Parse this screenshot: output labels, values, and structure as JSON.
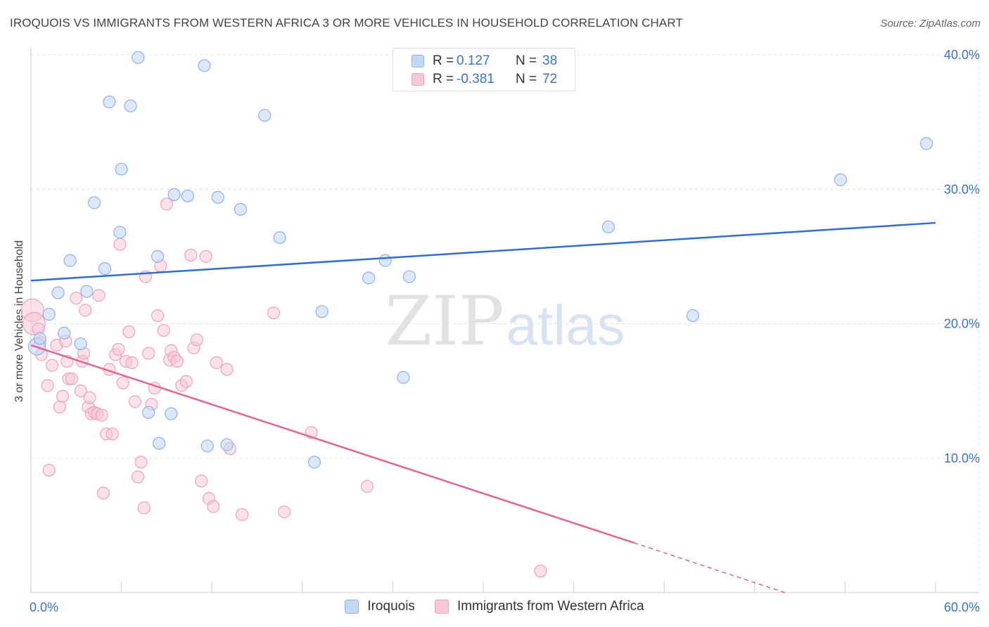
{
  "header": {
    "title": "IROQUOIS VS IMMIGRANTS FROM WESTERN AFRICA 3 OR MORE VEHICLES IN HOUSEHOLD CORRELATION CHART",
    "source": "Source: ZipAtlas.com"
  },
  "watermark": {
    "zip": "ZIP",
    "atlas": "atlas"
  },
  "legend": {
    "rows": [
      {
        "r_label": "R =",
        "r_value": "0.127",
        "n_label": "N =",
        "n_value": "38"
      },
      {
        "r_label": "R =",
        "r_value": "-0.381",
        "n_label": "N =",
        "n_value": "72"
      }
    ]
  },
  "colors": {
    "iroquois_fill": "#c5d8f5",
    "iroquois_stroke": "#8fb3e8",
    "iroquois_line": "#2f6fcc",
    "immig_fill": "#f8c8d6",
    "immig_stroke": "#f0a3ba",
    "immig_line": "#e06592",
    "tick_text": "#3b73c2",
    "grid": "#e3e3e3"
  },
  "chart_data": {
    "type": "scatter",
    "title": "IROQUOIS VS IMMIGRANTS FROM WESTERN AFRICA 3 OR MORE VEHICLES IN HOUSEHOLD CORRELATION CHART",
    "xlabel": "",
    "ylabel": "3 or more Vehicles in Household",
    "xlim": [
      0,
      60
    ],
    "ylim": [
      0,
      40
    ],
    "x_tick_labels": [
      "0.0%",
      "60.0%"
    ],
    "y_ticks": [
      10,
      20,
      30,
      40
    ],
    "y_tick_labels": [
      "10.0%",
      "20.0%",
      "30.0%",
      "40.0%"
    ],
    "legend_position": "top-center",
    "series": [
      {
        "name": "Iroquois",
        "r": 0.127,
        "n": 38,
        "trend": {
          "x": [
            0,
            60
          ],
          "y": [
            23.2,
            27.5
          ]
        },
        "points": [
          [
            0.4,
            18.3
          ],
          [
            0.6,
            18.9
          ],
          [
            1.2,
            20.7
          ],
          [
            1.8,
            22.3
          ],
          [
            2.2,
            19.3
          ],
          [
            2.6,
            24.7
          ],
          [
            3.3,
            18.5
          ],
          [
            3.7,
            22.4
          ],
          [
            4.2,
            29.0
          ],
          [
            4.9,
            24.1
          ],
          [
            5.2,
            36.5
          ],
          [
            5.9,
            26.8
          ],
          [
            6.0,
            31.5
          ],
          [
            6.6,
            36.2
          ],
          [
            7.1,
            39.8
          ],
          [
            7.8,
            13.4
          ],
          [
            8.4,
            25.0
          ],
          [
            8.5,
            11.1
          ],
          [
            9.3,
            13.3
          ],
          [
            9.5,
            29.6
          ],
          [
            10.4,
            29.5
          ],
          [
            11.5,
            39.2
          ],
          [
            11.7,
            10.9
          ],
          [
            12.4,
            29.4
          ],
          [
            13.0,
            11.0
          ],
          [
            13.9,
            28.5
          ],
          [
            15.5,
            35.5
          ],
          [
            16.5,
            26.4
          ],
          [
            18.8,
            9.7
          ],
          [
            19.3,
            20.9
          ],
          [
            22.4,
            23.4
          ],
          [
            23.5,
            24.7
          ],
          [
            24.7,
            16.0
          ],
          [
            25.1,
            23.5
          ],
          [
            38.3,
            27.2
          ],
          [
            43.9,
            20.6
          ],
          [
            53.7,
            30.7
          ],
          [
            59.4,
            33.4
          ]
        ]
      },
      {
        "name": "Immigrants from Western Africa",
        "r": -0.381,
        "n": 72,
        "trend": {
          "x": [
            0,
            40
          ],
          "y": [
            18.4,
            3.7
          ]
        },
        "trend_dashed": {
          "x": [
            40,
            50
          ],
          "y": [
            3.7,
            0.0
          ]
        },
        "points": [
          [
            0.1,
            21.0
          ],
          [
            0.2,
            20.0
          ],
          [
            0.5,
            19.6
          ],
          [
            0.6,
            18.6
          ],
          [
            0.7,
            17.7
          ],
          [
            1.1,
            15.4
          ],
          [
            1.2,
            9.1
          ],
          [
            1.4,
            16.9
          ],
          [
            1.7,
            18.4
          ],
          [
            1.9,
            13.8
          ],
          [
            2.1,
            14.6
          ],
          [
            2.3,
            18.7
          ],
          [
            2.4,
            17.2
          ],
          [
            2.5,
            15.9
          ],
          [
            2.7,
            15.9
          ],
          [
            3.0,
            21.9
          ],
          [
            3.3,
            15.0
          ],
          [
            3.4,
            17.2
          ],
          [
            3.5,
            17.8
          ],
          [
            3.6,
            21.0
          ],
          [
            3.8,
            13.8
          ],
          [
            3.9,
            14.5
          ],
          [
            4.0,
            13.3
          ],
          [
            4.2,
            13.4
          ],
          [
            4.4,
            13.3
          ],
          [
            4.5,
            22.1
          ],
          [
            4.7,
            13.2
          ],
          [
            4.8,
            7.4
          ],
          [
            5.0,
            11.8
          ],
          [
            5.2,
            16.6
          ],
          [
            5.4,
            11.8
          ],
          [
            5.6,
            17.7
          ],
          [
            5.8,
            18.1
          ],
          [
            5.9,
            25.9
          ],
          [
            6.1,
            15.6
          ],
          [
            6.3,
            17.2
          ],
          [
            6.5,
            19.4
          ],
          [
            6.7,
            17.1
          ],
          [
            6.9,
            14.2
          ],
          [
            7.1,
            8.6
          ],
          [
            7.3,
            9.7
          ],
          [
            7.5,
            6.3
          ],
          [
            7.6,
            23.5
          ],
          [
            7.8,
            17.8
          ],
          [
            8.0,
            14.0
          ],
          [
            8.2,
            15.2
          ],
          [
            8.4,
            20.6
          ],
          [
            8.6,
            24.3
          ],
          [
            8.8,
            19.5
          ],
          [
            9.0,
            28.9
          ],
          [
            9.2,
            17.3
          ],
          [
            9.3,
            18.0
          ],
          [
            9.5,
            17.5
          ],
          [
            9.7,
            17.2
          ],
          [
            10.0,
            15.4
          ],
          [
            10.3,
            15.7
          ],
          [
            10.6,
            25.1
          ],
          [
            10.8,
            18.2
          ],
          [
            11.0,
            18.8
          ],
          [
            11.3,
            8.3
          ],
          [
            11.6,
            25.0
          ],
          [
            11.8,
            7.0
          ],
          [
            12.1,
            6.4
          ],
          [
            12.3,
            17.1
          ],
          [
            13.0,
            16.6
          ],
          [
            13.2,
            10.7
          ],
          [
            14.0,
            5.8
          ],
          [
            16.1,
            20.8
          ],
          [
            16.8,
            6.0
          ],
          [
            18.6,
            11.9
          ],
          [
            22.3,
            7.9
          ],
          [
            33.8,
            1.6
          ]
        ]
      }
    ]
  }
}
